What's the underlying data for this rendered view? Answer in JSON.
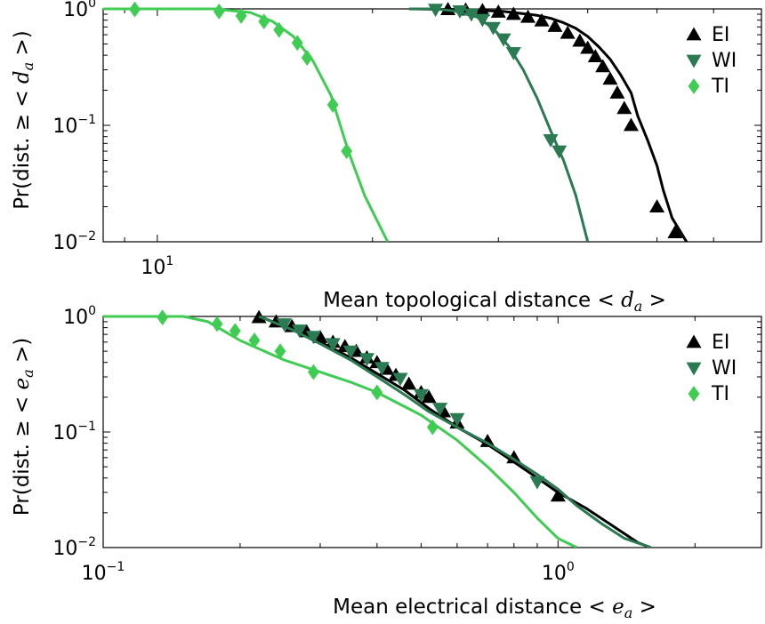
{
  "chart_data": [
    {
      "type": "line",
      "xscale": "log",
      "yscale": "log",
      "xlim": [
        8.4,
        70
      ],
      "ylim": [
        0.01,
        1.0
      ],
      "xlabel": "Mean topological distance",
      "xlabel_var": "d",
      "xlabel_sub": "a",
      "ylabel": "Pr(dist. ≥",
      "ylabel_var": "d",
      "ylabel_sub": "a",
      "xticks": [
        {
          "value": 10,
          "base": "10",
          "exp": "1"
        }
      ],
      "yticks": [
        {
          "value": 1,
          "base": "10",
          "exp": "0"
        },
        {
          "value": 0.1,
          "base": "10",
          "exp": "−1"
        },
        {
          "value": 0.01,
          "base": "10",
          "exp": "−2"
        }
      ],
      "legend_position": "top-right",
      "series": [
        {
          "name": "EI",
          "color": "#000000",
          "marker": "triangle-up",
          "x": [
            22.5,
            26,
            28.5,
            30.5,
            32,
            34,
            35.5,
            37,
            38.5,
            40,
            41.5,
            43,
            44.5,
            46,
            47,
            48.5,
            50,
            51,
            52.5,
            55
          ],
          "y": [
            1.0,
            0.99,
            0.97,
            0.95,
            0.92,
            0.88,
            0.83,
            0.76,
            0.68,
            0.58,
            0.47,
            0.37,
            0.27,
            0.19,
            0.12,
            0.075,
            0.045,
            0.028,
            0.016,
            0.01
          ],
          "marker_x": [
            25.5,
            27,
            28.5,
            30,
            31.5,
            33,
            34.5,
            36,
            37.5,
            39,
            40,
            41,
            42,
            43,
            44,
            45,
            46,
            50,
            53
          ],
          "marker_y": [
            0.99,
            0.98,
            0.97,
            0.94,
            0.9,
            0.85,
            0.79,
            0.71,
            0.62,
            0.53,
            0.46,
            0.39,
            0.32,
            0.25,
            0.19,
            0.14,
            0.1,
            0.02,
            0.012
          ]
        },
        {
          "name": "WI",
          "color": "#2a7a52",
          "marker": "triangle-down",
          "x": [
            22.5,
            24.5,
            26,
            28,
            29.5,
            31,
            32.5,
            34,
            35.5,
            37,
            38.5,
            40
          ],
          "y": [
            1.0,
            1.0,
            0.96,
            0.85,
            0.68,
            0.48,
            0.3,
            0.17,
            0.09,
            0.05,
            0.025,
            0.01
          ],
          "marker_x": [
            24.5,
            26.5,
            27.5,
            28.5,
            29.5,
            30.5,
            31.5,
            35.5,
            36.5
          ],
          "marker_y": [
            0.99,
            0.96,
            0.9,
            0.81,
            0.69,
            0.55,
            0.42,
            0.075,
            0.06
          ]
        },
        {
          "name": "TI",
          "color": "#3fcc52",
          "marker": "diamond",
          "x": [
            8.4,
            12,
            13.5,
            14.5,
            15.5,
            16.5,
            17.5,
            18.5,
            19.5,
            21
          ],
          "y": [
            1.0,
            1.0,
            0.93,
            0.78,
            0.58,
            0.36,
            0.18,
            0.06,
            0.025,
            0.01
          ],
          "marker_x": [
            9.3,
            12.2,
            13.1,
            14.1,
            14.8,
            15.7,
            16.2,
            17.6,
            18.4
          ],
          "marker_y": [
            0.99,
            0.95,
            0.87,
            0.78,
            0.66,
            0.51,
            0.38,
            0.15,
            0.06
          ]
        }
      ]
    },
    {
      "type": "line",
      "xscale": "log",
      "yscale": "log",
      "xlim": [
        0.1,
        2.8
      ],
      "ylim": [
        0.01,
        1.0
      ],
      "xlabel": "Mean electrical distance",
      "xlabel_var": "e",
      "xlabel_sub": "a",
      "ylabel": "Pr(dist. ≥",
      "ylabel_var": "e",
      "ylabel_sub": "a",
      "xticks": [
        {
          "value": 0.1,
          "base": "10",
          "exp": "−1"
        },
        {
          "value": 1,
          "base": "10",
          "exp": "0"
        }
      ],
      "yticks": [
        {
          "value": 1,
          "base": "10",
          "exp": "0"
        },
        {
          "value": 0.1,
          "base": "10",
          "exp": "−1"
        },
        {
          "value": 0.01,
          "base": "10",
          "exp": "−2"
        }
      ],
      "legend_position": "top-right",
      "series": [
        {
          "name": "EI",
          "color": "#000000",
          "marker": "triangle-up",
          "x": [
            0.22,
            0.26,
            0.3,
            0.35,
            0.4,
            0.46,
            0.52,
            0.6,
            0.7,
            0.8,
            0.9,
            1.0,
            1.15,
            1.3,
            1.5,
            1.6
          ],
          "y": [
            1.0,
            0.78,
            0.6,
            0.44,
            0.32,
            0.23,
            0.16,
            0.11,
            0.078,
            0.055,
            0.04,
            0.03,
            0.022,
            0.016,
            0.011,
            0.01
          ],
          "marker_x": [
            0.22,
            0.24,
            0.26,
            0.28,
            0.3,
            0.32,
            0.34,
            0.36,
            0.38,
            0.4,
            0.42,
            0.44,
            0.47,
            0.5,
            0.52,
            0.56,
            0.6,
            0.7,
            0.8,
            1.0
          ],
          "marker_y": [
            0.98,
            0.9,
            0.82,
            0.74,
            0.66,
            0.6,
            0.55,
            0.5,
            0.44,
            0.4,
            0.35,
            0.31,
            0.26,
            0.22,
            0.2,
            0.15,
            0.12,
            0.083,
            0.06,
            0.028
          ]
        },
        {
          "name": "WI",
          "color": "#2a7a52",
          "marker": "triangle-down",
          "x": [
            0.22,
            0.26,
            0.3,
            0.35,
            0.4,
            0.46,
            0.52,
            0.6,
            0.7,
            0.8,
            0.9,
            1.0,
            1.1,
            1.25,
            1.4,
            1.6
          ],
          "y": [
            1.0,
            0.77,
            0.58,
            0.42,
            0.3,
            0.21,
            0.15,
            0.11,
            0.08,
            0.058,
            0.043,
            0.032,
            0.023,
            0.016,
            0.012,
            0.01
          ],
          "marker_x": [
            0.25,
            0.27,
            0.29,
            0.32,
            0.35,
            0.38,
            0.41,
            0.45,
            0.5,
            0.55,
            0.6,
            0.9
          ],
          "marker_y": [
            0.86,
            0.76,
            0.67,
            0.58,
            0.5,
            0.43,
            0.36,
            0.29,
            0.21,
            0.16,
            0.13,
            0.037
          ]
        },
        {
          "name": "TI",
          "color": "#3fcc52",
          "marker": "diamond",
          "x": [
            0.1,
            0.15,
            0.17,
            0.2,
            0.25,
            0.3,
            0.35,
            0.4,
            0.5,
            0.6,
            0.7,
            0.8,
            0.9,
            1.0,
            1.1
          ],
          "y": [
            1.0,
            1.0,
            0.9,
            0.62,
            0.42,
            0.33,
            0.27,
            0.22,
            0.14,
            0.085,
            0.05,
            0.03,
            0.018,
            0.012,
            0.01
          ],
          "marker_x": [
            0.135,
            0.178,
            0.195,
            0.215,
            0.245,
            0.29,
            0.4,
            0.53
          ],
          "marker_y": [
            0.98,
            0.86,
            0.75,
            0.62,
            0.5,
            0.33,
            0.22,
            0.11
          ]
        }
      ]
    }
  ]
}
